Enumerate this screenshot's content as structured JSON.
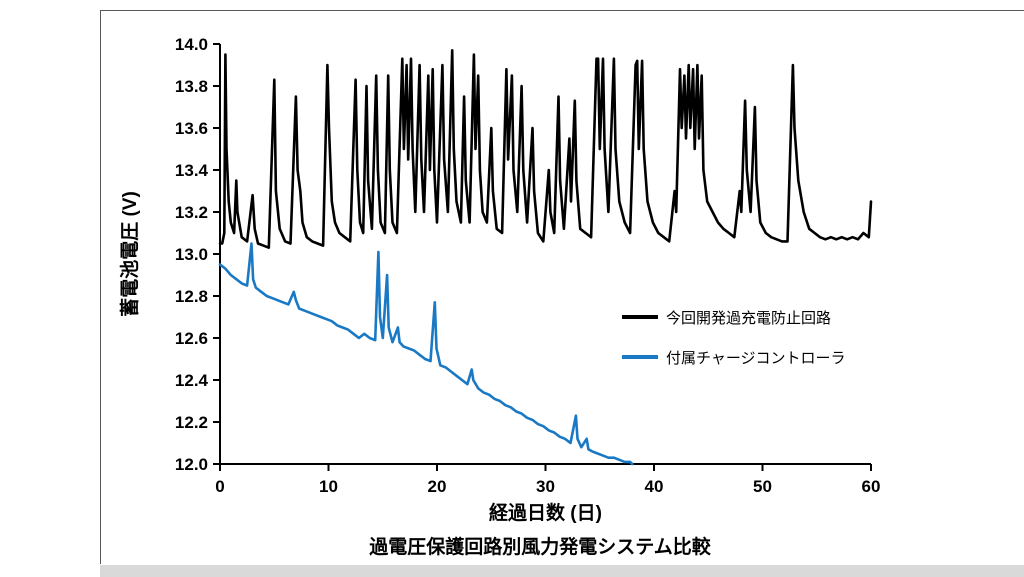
{
  "chart_data": {
    "type": "line",
    "title": "過電圧保護回路別風力発電システム比較",
    "xlabel": "経過日数 (日)",
    "ylabel": "蓄電池電圧 (V)",
    "xlim": [
      0,
      60
    ],
    "ylim": [
      12.0,
      14.0
    ],
    "x_ticks": [
      "0",
      "10",
      "20",
      "30",
      "40",
      "50",
      "60"
    ],
    "y_ticks": [
      "12.0",
      "12.2",
      "12.4",
      "12.6",
      "12.8",
      "13.0",
      "13.2",
      "13.4",
      "13.6",
      "13.8",
      "14.0"
    ],
    "grid": false,
    "legend_position": "inside-right",
    "series": [
      {
        "name": "今回開発過充電防止回路",
        "color": "#000000",
        "width": 2.6,
        "points": [
          [
            0,
            13.05
          ],
          [
            0.2,
            13.05
          ],
          [
            0.4,
            13.1
          ],
          [
            0.5,
            13.95
          ],
          [
            0.6,
            13.5
          ],
          [
            0.8,
            13.25
          ],
          [
            1.0,
            13.15
          ],
          [
            1.3,
            13.1
          ],
          [
            1.5,
            13.35
          ],
          [
            1.6,
            13.2
          ],
          [
            2.0,
            13.08
          ],
          [
            2.5,
            13.06
          ],
          [
            3.0,
            13.28
          ],
          [
            3.2,
            13.12
          ],
          [
            3.5,
            13.05
          ],
          [
            4.0,
            13.04
          ],
          [
            4.5,
            13.03
          ],
          [
            5.0,
            13.83
          ],
          [
            5.15,
            13.3
          ],
          [
            5.5,
            13.12
          ],
          [
            6.0,
            13.06
          ],
          [
            6.5,
            13.05
          ],
          [
            7.0,
            13.75
          ],
          [
            7.15,
            13.4
          ],
          [
            7.4,
            13.3
          ],
          [
            7.6,
            13.15
          ],
          [
            8.0,
            13.08
          ],
          [
            8.5,
            13.06
          ],
          [
            9.0,
            13.05
          ],
          [
            9.5,
            13.04
          ],
          [
            9.9,
            13.9
          ],
          [
            10.05,
            13.6
          ],
          [
            10.3,
            13.25
          ],
          [
            10.6,
            13.15
          ],
          [
            11.0,
            13.1
          ],
          [
            11.5,
            13.08
          ],
          [
            12.0,
            13.06
          ],
          [
            12.5,
            13.83
          ],
          [
            12.65,
            13.4
          ],
          [
            12.9,
            13.15
          ],
          [
            13.2,
            13.1
          ],
          [
            13.5,
            13.8
          ],
          [
            13.65,
            13.35
          ],
          [
            14.0,
            13.12
          ],
          [
            14.4,
            13.85
          ],
          [
            14.55,
            13.4
          ],
          [
            14.8,
            13.15
          ],
          [
            15.2,
            13.1
          ],
          [
            15.5,
            13.85
          ],
          [
            15.65,
            13.4
          ],
          [
            15.9,
            13.15
          ],
          [
            16.3,
            13.1
          ],
          [
            16.8,
            13.93
          ],
          [
            16.95,
            13.5
          ],
          [
            17.2,
            13.9
          ],
          [
            17.35,
            13.45
          ],
          [
            17.6,
            13.93
          ],
          [
            17.75,
            13.5
          ],
          [
            18.0,
            13.2
          ],
          [
            18.4,
            13.9
          ],
          [
            18.55,
            13.45
          ],
          [
            18.8,
            13.2
          ],
          [
            19.2,
            13.85
          ],
          [
            19.35,
            13.4
          ],
          [
            19.6,
            13.88
          ],
          [
            19.75,
            13.4
          ],
          [
            20.0,
            13.15
          ],
          [
            20.5,
            13.9
          ],
          [
            20.65,
            13.45
          ],
          [
            21.0,
            13.2
          ],
          [
            21.4,
            13.97
          ],
          [
            21.55,
            13.5
          ],
          [
            21.8,
            13.25
          ],
          [
            22.2,
            13.15
          ],
          [
            22.5,
            13.75
          ],
          [
            22.65,
            13.35
          ],
          [
            23.0,
            13.15
          ],
          [
            23.4,
            13.95
          ],
          [
            23.55,
            13.5
          ],
          [
            23.8,
            13.85
          ],
          [
            23.95,
            13.4
          ],
          [
            24.2,
            13.2
          ],
          [
            24.6,
            13.15
          ],
          [
            25.0,
            13.6
          ],
          [
            25.15,
            13.3
          ],
          [
            25.5,
            13.12
          ],
          [
            26.0,
            13.1
          ],
          [
            26.4,
            13.88
          ],
          [
            26.55,
            13.45
          ],
          [
            26.9,
            13.85
          ],
          [
            27.05,
            13.4
          ],
          [
            27.4,
            13.2
          ],
          [
            27.8,
            13.8
          ],
          [
            27.95,
            13.4
          ],
          [
            28.3,
            13.15
          ],
          [
            28.8,
            13.6
          ],
          [
            28.95,
            13.3
          ],
          [
            29.3,
            13.1
          ],
          [
            29.8,
            13.06
          ],
          [
            30.3,
            13.4
          ],
          [
            30.45,
            13.2
          ],
          [
            30.8,
            13.1
          ],
          [
            31.2,
            13.75
          ],
          [
            31.35,
            13.35
          ],
          [
            31.7,
            13.12
          ],
          [
            32.2,
            13.55
          ],
          [
            32.35,
            13.25
          ],
          [
            32.7,
            13.73
          ],
          [
            32.85,
            13.35
          ],
          [
            33.2,
            13.12
          ],
          [
            33.7,
            13.1
          ],
          [
            34.2,
            13.08
          ],
          [
            34.7,
            13.93
          ],
          [
            34.85,
            13.93
          ],
          [
            35.0,
            13.5
          ],
          [
            35.3,
            13.93
          ],
          [
            35.45,
            13.5
          ],
          [
            35.8,
            13.2
          ],
          [
            36.3,
            13.93
          ],
          [
            36.45,
            13.5
          ],
          [
            36.8,
            13.25
          ],
          [
            37.3,
            13.15
          ],
          [
            37.8,
            13.1
          ],
          [
            38.3,
            13.9
          ],
          [
            38.45,
            13.92
          ],
          [
            38.6,
            13.5
          ],
          [
            38.9,
            13.92
          ],
          [
            39.05,
            13.5
          ],
          [
            39.4,
            13.25
          ],
          [
            39.9,
            13.15
          ],
          [
            40.4,
            13.1
          ],
          [
            40.9,
            13.08
          ],
          [
            41.4,
            13.06
          ],
          [
            41.9,
            13.3
          ],
          [
            42.05,
            13.2
          ],
          [
            42.4,
            13.88
          ],
          [
            42.55,
            13.6
          ],
          [
            42.8,
            13.85
          ],
          [
            42.95,
            13.55
          ],
          [
            43.2,
            13.9
          ],
          [
            43.35,
            13.6
          ],
          [
            43.6,
            13.88
          ],
          [
            43.75,
            13.5
          ],
          [
            44.0,
            13.9
          ],
          [
            44.15,
            13.55
          ],
          [
            44.4,
            13.85
          ],
          [
            44.55,
            13.4
          ],
          [
            44.9,
            13.25
          ],
          [
            45.4,
            13.2
          ],
          [
            45.9,
            13.15
          ],
          [
            46.4,
            13.12
          ],
          [
            46.9,
            13.1
          ],
          [
            47.4,
            13.08
          ],
          [
            47.9,
            13.3
          ],
          [
            48.05,
            13.2
          ],
          [
            48.4,
            13.73
          ],
          [
            48.55,
            13.4
          ],
          [
            48.9,
            13.2
          ],
          [
            49.3,
            13.7
          ],
          [
            49.45,
            13.35
          ],
          [
            49.8,
            13.15
          ],
          [
            50.3,
            13.1
          ],
          [
            50.8,
            13.08
          ],
          [
            51.3,
            13.07
          ],
          [
            51.8,
            13.06
          ],
          [
            52.3,
            13.06
          ],
          [
            52.8,
            13.9
          ],
          [
            52.95,
            13.6
          ],
          [
            53.3,
            13.35
          ],
          [
            53.8,
            13.2
          ],
          [
            54.3,
            13.12
          ],
          [
            54.8,
            13.1
          ],
          [
            55.3,
            13.08
          ],
          [
            55.8,
            13.07
          ],
          [
            56.3,
            13.08
          ],
          [
            56.8,
            13.07
          ],
          [
            57.3,
            13.08
          ],
          [
            57.8,
            13.07
          ],
          [
            58.3,
            13.08
          ],
          [
            58.8,
            13.07
          ],
          [
            59.3,
            13.1
          ],
          [
            59.8,
            13.08
          ],
          [
            60.0,
            13.25
          ]
        ]
      },
      {
        "name": "付属チャージコントローラ",
        "color": "#1a79c4",
        "width": 2.6,
        "points": [
          [
            0,
            12.95
          ],
          [
            0.5,
            12.93
          ],
          [
            1.0,
            12.9
          ],
          [
            1.5,
            12.88
          ],
          [
            2.0,
            12.86
          ],
          [
            2.5,
            12.85
          ],
          [
            2.9,
            13.05
          ],
          [
            3.05,
            12.88
          ],
          [
            3.3,
            12.84
          ],
          [
            3.8,
            12.82
          ],
          [
            4.3,
            12.8
          ],
          [
            4.8,
            12.79
          ],
          [
            5.3,
            12.78
          ],
          [
            5.8,
            12.77
          ],
          [
            6.3,
            12.76
          ],
          [
            6.8,
            12.82
          ],
          [
            7.0,
            12.78
          ],
          [
            7.3,
            12.74
          ],
          [
            7.8,
            12.73
          ],
          [
            8.3,
            12.72
          ],
          [
            8.8,
            12.71
          ],
          [
            9.3,
            12.7
          ],
          [
            9.8,
            12.69
          ],
          [
            10.3,
            12.68
          ],
          [
            10.8,
            12.66
          ],
          [
            11.3,
            12.65
          ],
          [
            11.8,
            12.64
          ],
          [
            12.3,
            12.62
          ],
          [
            12.8,
            12.6
          ],
          [
            13.3,
            12.62
          ],
          [
            13.8,
            12.6
          ],
          [
            14.3,
            12.59
          ],
          [
            14.6,
            13.01
          ],
          [
            14.75,
            12.7
          ],
          [
            15.0,
            12.6
          ],
          [
            15.4,
            12.9
          ],
          [
            15.55,
            12.65
          ],
          [
            15.9,
            12.58
          ],
          [
            16.4,
            12.65
          ],
          [
            16.55,
            12.58
          ],
          [
            16.9,
            12.56
          ],
          [
            17.4,
            12.55
          ],
          [
            17.9,
            12.54
          ],
          [
            18.4,
            12.52
          ],
          [
            18.9,
            12.5
          ],
          [
            19.4,
            12.49
          ],
          [
            19.8,
            12.77
          ],
          [
            19.95,
            12.55
          ],
          [
            20.3,
            12.47
          ],
          [
            20.8,
            12.46
          ],
          [
            21.3,
            12.44
          ],
          [
            21.8,
            12.42
          ],
          [
            22.3,
            12.4
          ],
          [
            22.8,
            12.38
          ],
          [
            23.2,
            12.45
          ],
          [
            23.35,
            12.4
          ],
          [
            23.8,
            12.36
          ],
          [
            24.3,
            12.34
          ],
          [
            24.8,
            12.33
          ],
          [
            25.3,
            12.31
          ],
          [
            25.8,
            12.3
          ],
          [
            26.3,
            12.28
          ],
          [
            26.8,
            12.27
          ],
          [
            27.3,
            12.25
          ],
          [
            27.8,
            12.24
          ],
          [
            28.3,
            12.22
          ],
          [
            28.8,
            12.21
          ],
          [
            29.3,
            12.19
          ],
          [
            29.8,
            12.18
          ],
          [
            30.3,
            12.16
          ],
          [
            30.8,
            12.15
          ],
          [
            31.3,
            12.13
          ],
          [
            31.8,
            12.12
          ],
          [
            32.3,
            12.1
          ],
          [
            32.8,
            12.23
          ],
          [
            32.95,
            12.12
          ],
          [
            33.3,
            12.08
          ],
          [
            33.8,
            12.12
          ],
          [
            33.95,
            12.07
          ],
          [
            34.3,
            12.06
          ],
          [
            34.8,
            12.05
          ],
          [
            35.3,
            12.04
          ],
          [
            35.8,
            12.03
          ],
          [
            36.3,
            12.03
          ],
          [
            36.8,
            12.02
          ],
          [
            37.3,
            12.01
          ],
          [
            37.8,
            12.01
          ],
          [
            38.0,
            12.0
          ]
        ]
      }
    ]
  }
}
